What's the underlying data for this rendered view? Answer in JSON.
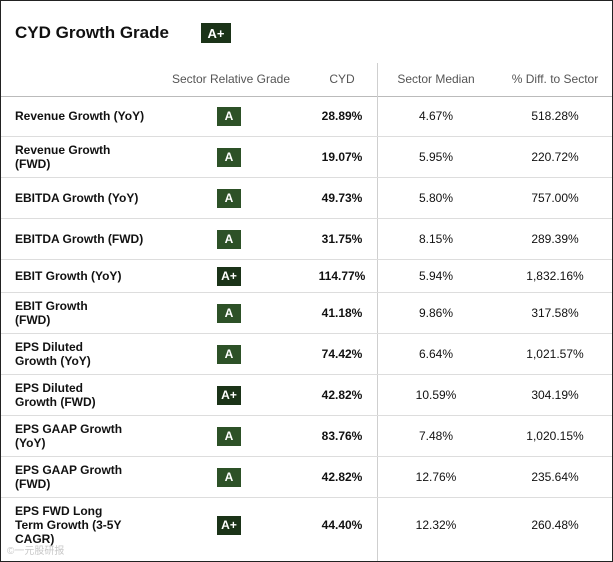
{
  "title": "CYD Growth Grade",
  "overall_grade": "A+",
  "columns": {
    "grade": "Sector Relative Grade",
    "cyd": "CYD",
    "median": "Sector Median",
    "diff": "% Diff. to Sector"
  },
  "rows": [
    {
      "metric": "Revenue Growth (YoY)",
      "grade": "A",
      "cyd": "28.89%",
      "median": "4.67%",
      "diff": "518.28%"
    },
    {
      "metric": "Revenue Growth (FWD)",
      "grade": "A",
      "cyd": "19.07%",
      "median": "5.95%",
      "diff": "220.72%"
    },
    {
      "metric": "EBITDA Growth (YoY)",
      "grade": "A",
      "cyd": "49.73%",
      "median": "5.80%",
      "diff": "757.00%"
    },
    {
      "metric": "EBITDA Growth (FWD)",
      "grade": "A",
      "cyd": "31.75%",
      "median": "8.15%",
      "diff": "289.39%"
    },
    {
      "metric": "EBIT Growth (YoY)",
      "grade": "A+",
      "cyd": "114.77%",
      "median": "5.94%",
      "diff": "1,832.16%"
    },
    {
      "metric": "EBIT Growth (FWD)",
      "grade": "A",
      "cyd": "41.18%",
      "median": "9.86%",
      "diff": "317.58%"
    },
    {
      "metric": "EPS Diluted Growth (YoY)",
      "grade": "A",
      "cyd": "74.42%",
      "median": "6.64%",
      "diff": "1,021.57%"
    },
    {
      "metric": "EPS Diluted Growth (FWD)",
      "grade": "A+",
      "cyd": "42.82%",
      "median": "10.59%",
      "diff": "304.19%"
    },
    {
      "metric": "EPS GAAP Growth (YoY)",
      "grade": "A",
      "cyd": "83.76%",
      "median": "7.48%",
      "diff": "1,020.15%"
    },
    {
      "metric": "EPS GAAP Growth (FWD)",
      "grade": "A",
      "cyd": "42.82%",
      "median": "12.76%",
      "diff": "235.64%"
    },
    {
      "metric": "EPS FWD Long Term Growth (3-5Y CAGR)",
      "grade": "A+",
      "cyd": "44.40%",
      "median": "12.32%",
      "diff": "260.48%"
    }
  ],
  "watermark": "©一元股研报"
}
